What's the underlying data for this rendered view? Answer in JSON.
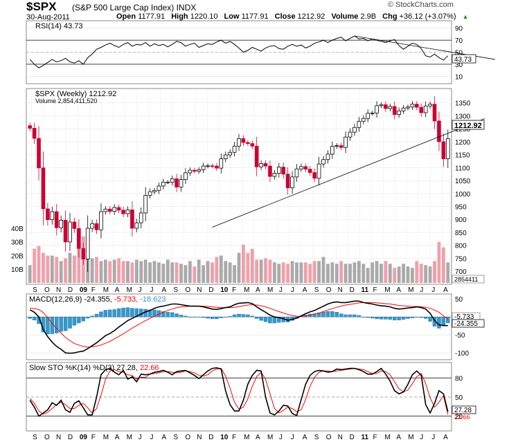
{
  "header": {
    "ticker": "$SPX",
    "name": "(S&P 500 Large Cap Index)",
    "exchange": "INDX",
    "date": "30-Aug-2011",
    "credit": "© StockCharts.com",
    "open_label": "Open",
    "open": "1177.91",
    "high_label": "High",
    "high": "1220.10",
    "low_label": "Low",
    "low": "1177.91",
    "close_label": "Close",
    "close": "1212.92",
    "volume_label": "Volume",
    "volume": "2.9B",
    "chg_label": "Chg",
    "chg": "+36.12 (+3.07%)"
  },
  "colors": {
    "up_candle": "#000000",
    "down_candle": "#cc0033",
    "vol_up": "#aaaaaa",
    "vol_down": "#f0a0aa",
    "macd_hist": "#3399cc",
    "signal": "#ff0000"
  },
  "chart_data": [
    {
      "type": "line",
      "panel": "RSI",
      "title": "RSI(14) 43.73",
      "y_ticks": [
        10,
        30,
        50,
        70,
        90
      ],
      "ylim": [
        0,
        100
      ],
      "reference_lines": [
        30,
        70
      ],
      "last_value_label": "43.73",
      "values": [
        38,
        30,
        24,
        28,
        33,
        38,
        34,
        36,
        40,
        34,
        32,
        36,
        30,
        41,
        47,
        55,
        58,
        62,
        65,
        61,
        58,
        63,
        66,
        60,
        63,
        62,
        66,
        60,
        64,
        61,
        63,
        59,
        63,
        68,
        66,
        60,
        63,
        65,
        58,
        61,
        64,
        63,
        67,
        70,
        65,
        68,
        63,
        57,
        50,
        53,
        58,
        55,
        52,
        57,
        60,
        61,
        56,
        55,
        60,
        63,
        60,
        62,
        57,
        60,
        65,
        67,
        70,
        66,
        70,
        73,
        75,
        69,
        73,
        77,
        72,
        73,
        69,
        72,
        70,
        68,
        66,
        69,
        71,
        61,
        55,
        60,
        65,
        63,
        56,
        44,
        42,
        47,
        41,
        37,
        44
      ]
    },
    {
      "type": "bar",
      "panel": "price",
      "title": "$SPX (Weekly) 1212.92",
      "subtitle": "Volume 2,854,411,520",
      "x_ticks": [
        "S",
        "O",
        "N",
        "D",
        "09",
        "F",
        "M",
        "A",
        "M",
        "J",
        "J",
        "A",
        "S",
        "O",
        "N",
        "D",
        "10",
        "F",
        "M",
        "A",
        "M",
        "J",
        "J",
        "A",
        "S",
        "O",
        "N",
        "D",
        "11",
        "F",
        "M",
        "A",
        "M",
        "J",
        "J",
        "A"
      ],
      "y_ticks": [
        700,
        750,
        800,
        850,
        900,
        950,
        1000,
        1050,
        1100,
        1150,
        1200,
        1250,
        1300,
        1350
      ],
      "ylim": [
        655,
        1400
      ],
      "last_value_label": "1212.92",
      "close": [
        1252,
        1213,
        1099,
        941,
        899,
        930,
        868,
        897,
        813,
        890,
        865,
        788,
        747,
        866,
        884,
        860,
        930,
        940,
        931,
        946,
        936,
        922,
        937,
        866,
        887,
        925,
        993,
        1007,
        1012,
        1029,
        1044,
        1044,
        1057,
        1025,
        1054,
        1080,
        1090,
        1086,
        1092,
        1106,
        1107,
        1106,
        1098,
        1134,
        1149,
        1159,
        1183,
        1212,
        1197,
        1193,
        1183,
        1103,
        1116,
        1106,
        1066,
        1078,
        1102,
        1075,
        1022,
        1064,
        1095,
        1104,
        1094,
        1081,
        1059,
        1114,
        1131,
        1152,
        1182,
        1185,
        1178,
        1218,
        1237,
        1255,
        1279,
        1290,
        1310,
        1311,
        1339,
        1343,
        1328,
        1336,
        1305,
        1319,
        1330,
        1334,
        1345,
        1333,
        1312,
        1338,
        1345,
        1280,
        1200,
        1134,
        1212
      ],
      "volume_b": [
        13,
        25,
        27,
        22,
        20,
        20,
        19,
        16,
        18,
        22,
        20,
        30,
        34,
        23,
        18,
        19,
        16,
        17,
        16,
        17,
        18,
        16,
        16,
        15,
        17,
        16,
        17,
        15,
        16,
        15,
        14,
        17,
        15,
        15,
        14,
        13,
        16,
        12,
        17,
        13,
        16,
        15,
        19,
        20,
        16,
        15,
        13,
        22,
        28,
        22,
        25,
        17,
        17,
        18,
        17,
        15,
        14,
        15,
        14,
        16,
        15,
        15,
        15,
        14,
        16,
        16,
        19,
        14,
        15,
        14,
        16,
        14,
        14,
        15,
        16,
        14,
        11,
        15,
        16,
        14,
        16,
        14,
        11,
        12,
        14,
        12,
        11,
        16,
        14,
        13,
        12,
        16,
        30,
        26,
        15
      ],
      "volume_ticks": [
        "10B",
        "20B",
        "30B",
        "40B"
      ],
      "volume_last_label": "2854411",
      "trendlines": [
        {
          "from_week": 41,
          "from_value": 870,
          "to_week": 98,
          "to_value": 1260
        }
      ]
    },
    {
      "type": "line",
      "panel": "MACD",
      "title_prefix": "MACD(12,26,9)",
      "title_macd": "-24.355,",
      "title_signal": "-5.733,",
      "title_hist": "-18.623",
      "y_ticks": [
        50,
        0,
        -50,
        -100
      ],
      "ylim": [
        -115,
        60
      ],
      "last_macd_label": "-24.355",
      "last_signal_label": "-5.733",
      "macd": [
        20,
        13,
        0,
        -35,
        -55,
        -70,
        -82,
        -90,
        -100,
        -101,
        -100,
        -97,
        -95,
        -88,
        -80,
        -72,
        -62,
        -52,
        -46,
        -38,
        -28,
        -19,
        -10,
        -4,
        2,
        8,
        14,
        18,
        24,
        28,
        30,
        33,
        36,
        36,
        34,
        32,
        30,
        30,
        30,
        28,
        25,
        22,
        21,
        23,
        26,
        28,
        34,
        38,
        39,
        40,
        37,
        28,
        20,
        13,
        5,
        0,
        -2,
        -5,
        -9,
        -7,
        -3,
        3,
        9,
        14,
        18,
        24,
        30,
        36,
        40,
        42,
        40,
        40,
        42,
        44,
        44,
        40,
        38,
        36,
        33,
        31,
        30,
        28,
        24,
        22,
        23,
        25,
        26,
        28,
        26,
        22,
        10,
        -10,
        -22,
        -24,
        -24
      ],
      "signal": [
        25,
        23,
        21,
        12,
        -2,
        -18,
        -32,
        -45,
        -57,
        -66,
        -74,
        -78,
        -82,
        -84,
        -83,
        -81,
        -78,
        -73,
        -68,
        -61,
        -54,
        -47,
        -39,
        -31,
        -24,
        -17,
        -10,
        -4,
        2,
        8,
        13,
        18,
        22,
        26,
        28,
        29,
        30,
        30,
        30,
        30,
        29,
        28,
        27,
        26,
        26,
        26,
        27,
        29,
        31,
        33,
        34,
        33,
        31,
        28,
        24,
        19,
        15,
        11,
        7,
        4,
        2,
        2,
        3,
        5,
        8,
        11,
        15,
        19,
        23,
        27,
        30,
        33,
        35,
        37,
        39,
        40,
        40,
        40,
        39,
        38,
        37,
        36,
        34,
        32,
        31,
        30,
        29,
        29,
        28,
        27,
        24,
        19,
        13,
        3,
        -5.7
      ]
    },
    {
      "type": "line",
      "panel": "Slow STO",
      "title_prefix": "Slow STO %K(14) %D(3)",
      "title_k": "27.28,",
      "title_d": "22.66",
      "y_ticks": [
        20,
        50,
        80
      ],
      "ylim": [
        0,
        100
      ],
      "reference_lines": [
        20,
        80
      ],
      "last_k_label": "27.28",
      "last_d_label": "22.66",
      "k": [
        45,
        34,
        20,
        25,
        30,
        41,
        37,
        45,
        30,
        26,
        40,
        44,
        33,
        22,
        22,
        50,
        85,
        93,
        95,
        89,
        85,
        92,
        78,
        82,
        74,
        86,
        85,
        86,
        89,
        90,
        92,
        89,
        85,
        90,
        91,
        92,
        88,
        84,
        79,
        85,
        91,
        95,
        96,
        94,
        60,
        38,
        28,
        28,
        45,
        70,
        84,
        92,
        91,
        50,
        25,
        22,
        28,
        37,
        36,
        24,
        21,
        46,
        70,
        84,
        90,
        92,
        91,
        89,
        90,
        94,
        93,
        94,
        95,
        95,
        93,
        90,
        86,
        86,
        90,
        95,
        86,
        75,
        60,
        55,
        58,
        70,
        85,
        91,
        84,
        38,
        25,
        40,
        60,
        55,
        27
      ],
      "d": [
        48,
        40,
        28,
        23,
        26,
        32,
        38,
        42,
        38,
        32,
        32,
        37,
        40,
        33,
        25,
        32,
        53,
        78,
        91,
        93,
        90,
        89,
        85,
        84,
        78,
        81,
        81,
        86,
        87,
        88,
        90,
        90,
        89,
        88,
        89,
        91,
        90,
        88,
        84,
        83,
        85,
        91,
        94,
        95,
        83,
        64,
        42,
        31,
        34,
        47,
        67,
        82,
        89,
        78,
        55,
        32,
        25,
        29,
        34,
        32,
        27,
        30,
        46,
        67,
        81,
        89,
        91,
        91,
        90,
        91,
        92,
        93,
        94,
        95,
        94,
        93,
        90,
        87,
        87,
        91,
        90,
        85,
        74,
        63,
        58,
        61,
        71,
        82,
        87,
        71,
        49,
        34,
        42,
        52,
        22.66
      ]
    }
  ]
}
